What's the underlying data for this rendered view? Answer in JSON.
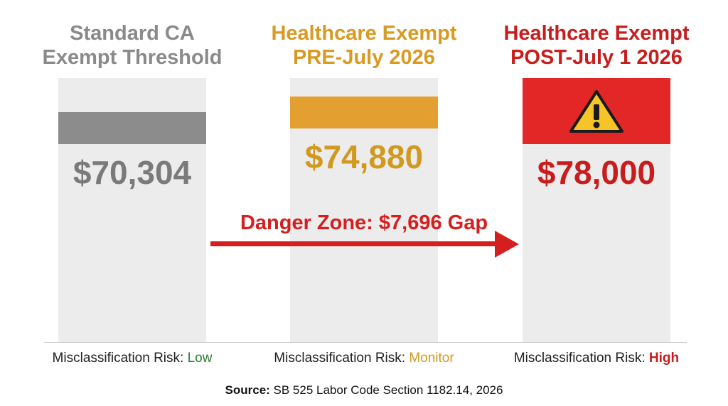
{
  "chart_data": {
    "type": "bar",
    "categories": [
      "Standard CA Exempt Threshold",
      "Healthcare Exempt PRE-July 2026",
      "Healthcare Exempt POST-July 1 2026"
    ],
    "columns": [
      {
        "title_line1": "Standard CA",
        "title_line2": "Exempt Threshold",
        "value": 70304,
        "value_label": "$70,304",
        "risk_label": "Misclassification Risk: ",
        "risk_level": "Low",
        "color": "#8c8c8c",
        "value_color": "#7a7a7a",
        "risk_color": "#2e7d32"
      },
      {
        "title_line1": "Healthcare Exempt",
        "title_line2": "PRE-July 2026",
        "value": 74880,
        "value_label": "$74,880",
        "risk_label": "Misclassification Risk: ",
        "risk_level": "Monitor",
        "color": "#e3a030",
        "value_color": "#d19a1f",
        "risk_color": "#d19a1f"
      },
      {
        "title_line1": "Healthcare Exempt",
        "title_line2": "POST-July 1 2026",
        "value": 78000,
        "value_label": "$78,000",
        "risk_label": "Misclassification Risk: ",
        "risk_level": "High",
        "color": "#e32626",
        "value_color": "#c91d1d",
        "risk_color": "#c91d1d",
        "icon": "warning-icon"
      }
    ],
    "annotation": "Danger Zone: $7,696 Gap",
    "annotation_color": "#d51f1f",
    "grid": false,
    "legend": "none"
  },
  "source": {
    "label": "Source:",
    "text": " SB 525 Labor Code Section 1182.14, 2026"
  }
}
